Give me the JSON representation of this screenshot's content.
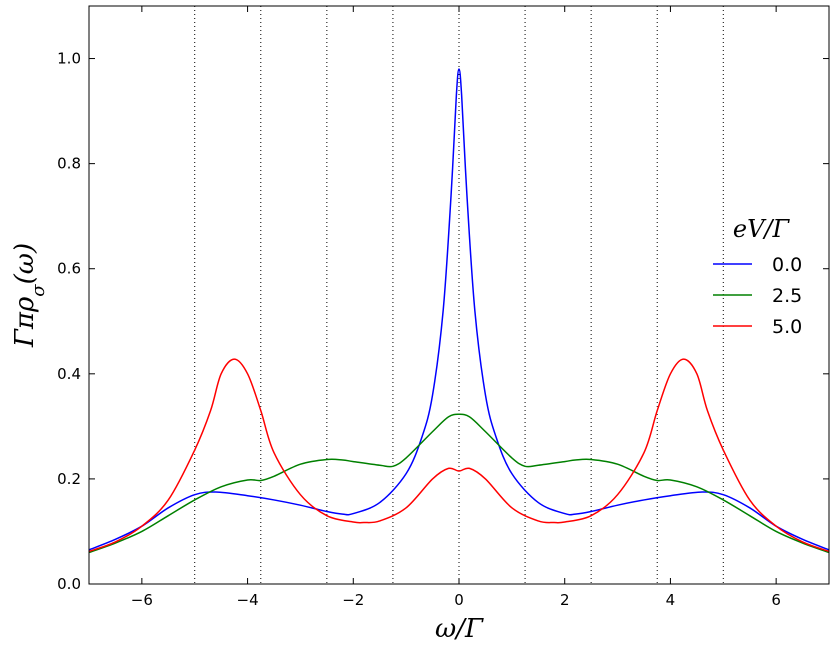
{
  "chart_data": {
    "type": "line",
    "xlabel": "ω/Γ",
    "ylabel": "Γπρ_σ(ω)",
    "xlim": [
      -7,
      7
    ],
    "ylim": [
      0,
      1.1
    ],
    "x_ticks": [
      -6,
      -4,
      -2,
      0,
      2,
      4,
      6
    ],
    "y_ticks": [
      0.0,
      0.2,
      0.4,
      0.6,
      0.8,
      1.0
    ],
    "x_tick_labels": [
      "−6",
      "−4",
      "−2",
      "0",
      "2",
      "4",
      "6"
    ],
    "y_tick_labels": [
      "0.0",
      "0.2",
      "0.4",
      "0.6",
      "0.8",
      "1.0"
    ],
    "grid": "vertical dotted lines",
    "vlines": [
      -5.0,
      -3.75,
      -2.5,
      -1.25,
      0,
      1.25,
      2.5,
      3.75,
      5.0
    ],
    "legend": {
      "title": "eV/Γ",
      "position": "right"
    },
    "series": [
      {
        "name": "0.0",
        "color": "#0000ff",
        "x": [
          -7,
          -6.5,
          -6,
          -5.5,
          -5,
          -4.6,
          -4,
          -3.5,
          -3,
          -2.5,
          -2.2,
          -2,
          -1.5,
          -1,
          -0.7,
          -0.5,
          -0.3,
          -0.15,
          -0.05,
          0,
          0.05,
          0.15,
          0.3,
          0.5,
          0.7,
          1,
          1.5,
          2,
          2.2,
          2.5,
          3,
          3.5,
          4,
          4.6,
          5,
          5.5,
          6,
          6.5,
          7
        ],
        "y": [
          0.065,
          0.085,
          0.11,
          0.145,
          0.17,
          0.175,
          0.168,
          0.16,
          0.15,
          0.138,
          0.133,
          0.134,
          0.155,
          0.21,
          0.28,
          0.36,
          0.52,
          0.74,
          0.93,
          0.98,
          0.93,
          0.74,
          0.52,
          0.36,
          0.28,
          0.21,
          0.155,
          0.134,
          0.133,
          0.138,
          0.15,
          0.16,
          0.168,
          0.175,
          0.17,
          0.145,
          0.11,
          0.085,
          0.065
        ]
      },
      {
        "name": "2.5",
        "color": "#008000",
        "x": [
          -7,
          -6.5,
          -6,
          -5.5,
          -5,
          -4.5,
          -4,
          -3.75,
          -3.5,
          -3,
          -2.5,
          -2.2,
          -2,
          -1.5,
          -1.25,
          -1,
          -0.5,
          -0.2,
          0,
          0.2,
          0.5,
          1,
          1.25,
          1.5,
          2,
          2.2,
          2.5,
          3,
          3.5,
          3.75,
          4,
          4.5,
          5,
          5.5,
          6,
          6.5,
          7
        ],
        "y": [
          0.06,
          0.078,
          0.1,
          0.13,
          0.16,
          0.185,
          0.198,
          0.197,
          0.205,
          0.228,
          0.237,
          0.236,
          0.233,
          0.226,
          0.224,
          0.24,
          0.29,
          0.318,
          0.323,
          0.318,
          0.29,
          0.24,
          0.224,
          0.226,
          0.233,
          0.236,
          0.237,
          0.228,
          0.205,
          0.197,
          0.198,
          0.185,
          0.16,
          0.13,
          0.1,
          0.078,
          0.06
        ]
      },
      {
        "name": "5.0",
        "color": "#ff0000",
        "x": [
          -7,
          -6.5,
          -6,
          -5.5,
          -5,
          -4.7,
          -4.5,
          -4.25,
          -4,
          -3.75,
          -3.5,
          -3,
          -2.5,
          -2,
          -1.8,
          -1.5,
          -1,
          -0.5,
          -0.2,
          0,
          0.2,
          0.5,
          1,
          1.5,
          1.8,
          2,
          2.5,
          3,
          3.5,
          3.75,
          4,
          4.25,
          4.5,
          4.7,
          5,
          5.5,
          6,
          6.5,
          7
        ],
        "y": [
          0.062,
          0.08,
          0.11,
          0.16,
          0.255,
          0.33,
          0.4,
          0.428,
          0.4,
          0.33,
          0.25,
          0.17,
          0.13,
          0.118,
          0.117,
          0.12,
          0.145,
          0.2,
          0.22,
          0.215,
          0.22,
          0.2,
          0.145,
          0.12,
          0.117,
          0.118,
          0.13,
          0.17,
          0.25,
          0.33,
          0.4,
          0.428,
          0.4,
          0.33,
          0.255,
          0.16,
          0.11,
          0.08,
          0.062
        ]
      }
    ]
  }
}
